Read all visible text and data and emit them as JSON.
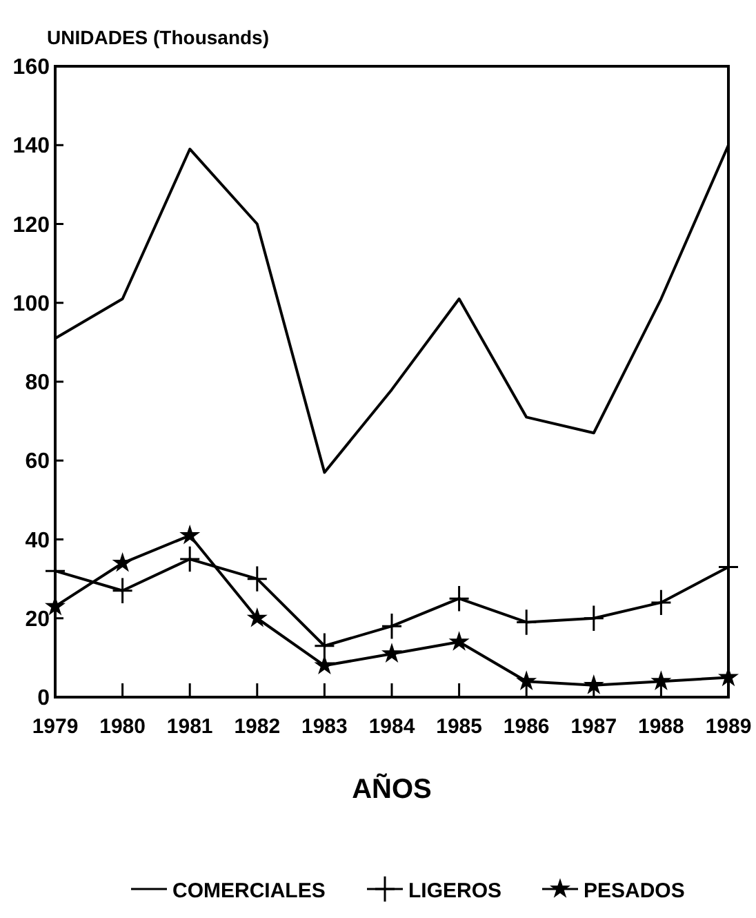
{
  "chart_data": {
    "type": "line",
    "xlabel": "AÑOS",
    "ylabel": "UNIDADES (Thousands)",
    "x": [
      1979,
      1980,
      1981,
      1982,
      1983,
      1984,
      1985,
      1986,
      1987,
      1988,
      1989
    ],
    "xlim": [
      1979,
      1989
    ],
    "xticks": [
      1979,
      1980,
      1981,
      1982,
      1983,
      1984,
      1985,
      1986,
      1987,
      1988,
      1989
    ],
    "ylim": [
      0,
      160
    ],
    "yticks": [
      0,
      20,
      40,
      60,
      80,
      100,
      120,
      140,
      160
    ],
    "grid": false,
    "legend": "bottom",
    "line_style": "solid",
    "series": [
      {
        "name": "COMERCIALES",
        "color": "#000000",
        "marker": "none",
        "values": [
          91,
          101,
          139,
          120,
          57,
          78,
          101,
          71,
          67,
          101,
          140
        ]
      },
      {
        "name": "LIGEROS",
        "color": "#000000",
        "marker": "cross",
        "values": [
          32,
          27,
          35,
          30,
          13,
          18,
          25,
          19,
          20,
          24,
          33
        ]
      },
      {
        "name": "PESADOS",
        "color": "#000000",
        "marker": "star",
        "values": [
          23,
          34,
          41,
          20,
          8,
          11,
          14,
          4,
          3,
          4,
          5
        ]
      }
    ]
  }
}
